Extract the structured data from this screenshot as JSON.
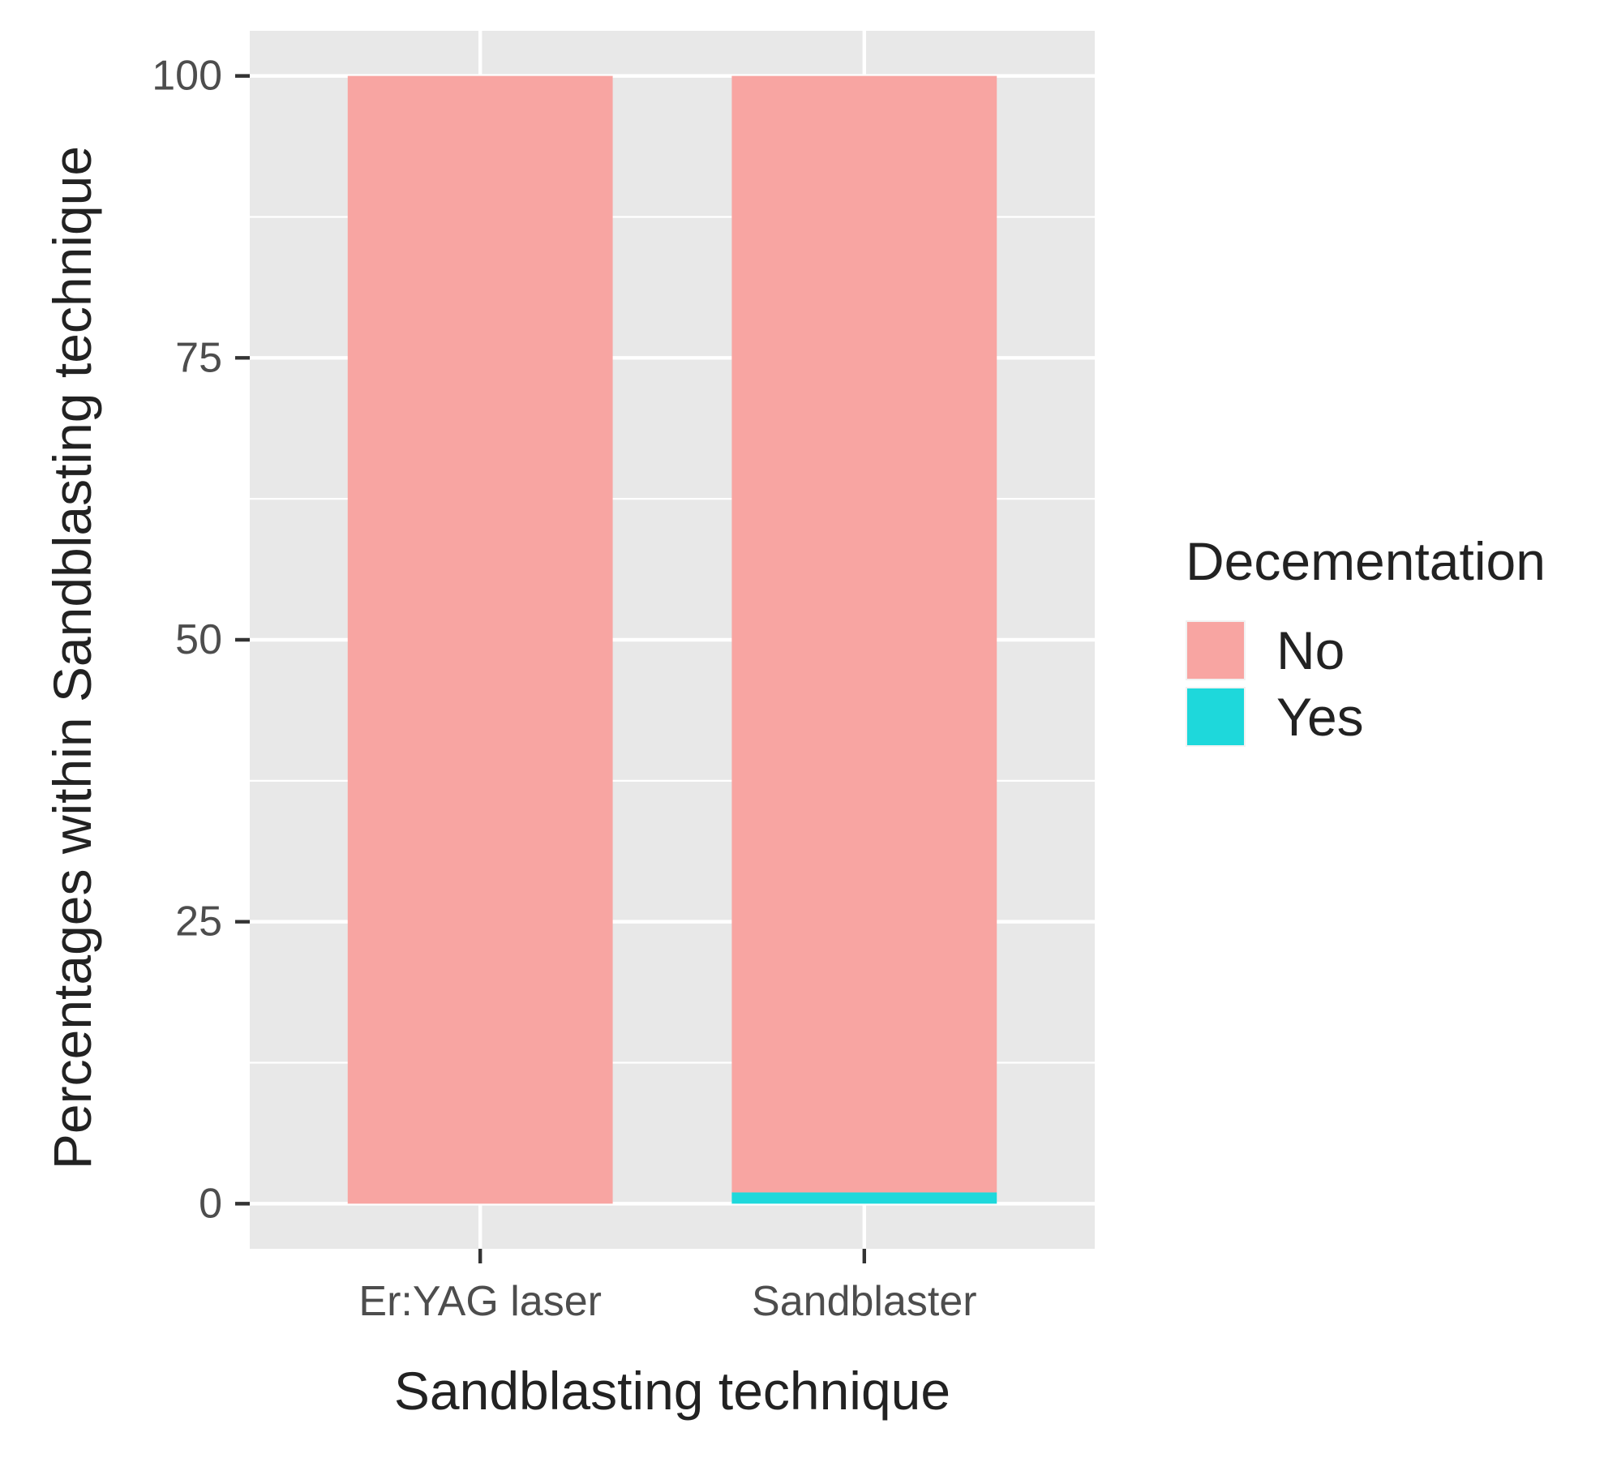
{
  "chart_data": {
    "type": "bar",
    "stacked": true,
    "categories": [
      "Er:YAG laser",
      "Sandblaster"
    ],
    "series": [
      {
        "name": "No",
        "color": "#F8A5A2",
        "values": [
          100,
          99
        ]
      },
      {
        "name": "Yes",
        "color": "#1ED8DB",
        "values": [
          0,
          1
        ]
      }
    ],
    "xlabel": "Sandblasting technique",
    "ylabel": "Percentages within Sandblasting technique",
    "ylim": [
      -4,
      104
    ],
    "yticks": [
      0,
      25,
      50,
      75,
      100
    ],
    "ytick_labels": [
      "0",
      "25",
      "50",
      "75",
      "100"
    ],
    "grid": true,
    "legend": {
      "title": "Decementation",
      "position": "right",
      "items": [
        "No",
        "Yes"
      ]
    },
    "panel_color": "#E8E8E8",
    "grid_color": "#FFFFFF",
    "text_color": "#4D4D4D"
  }
}
